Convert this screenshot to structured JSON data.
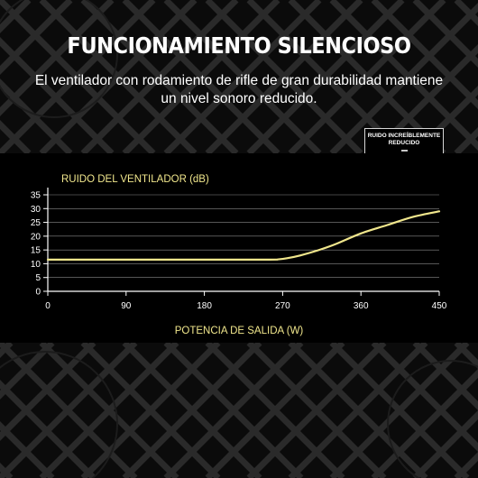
{
  "page": {
    "headline": "FUNCIONAMIENTO SILENCIOSO",
    "subtitle": "El ventilador con rodamiento de rifle de gran durabilidad mantiene un nivel sonoro reducido.",
    "badge_text": "RUIDO INCREÍBLEMENTE REDUCIDO"
  },
  "colors": {
    "background": "#000000",
    "accent": "#f0e68c",
    "text": "#ffffff",
    "grid": "#8a8a8a"
  },
  "chart_data": {
    "type": "line",
    "title": "RUIDO DEL VENTILADOR (dB)",
    "xlabel": "POTENCIA DE SALIDA (W)",
    "ylabel": "",
    "xlim": [
      0,
      450
    ],
    "ylim": [
      0,
      35
    ],
    "xticks": [
      0,
      90,
      180,
      270,
      360,
      450
    ],
    "yticks": [
      0,
      5,
      10,
      15,
      20,
      25,
      30,
      35
    ],
    "grid": true,
    "series": [
      {
        "x": [
          0,
          90,
          180,
          255,
          265,
          275,
          290,
          310,
          330,
          360,
          390,
          420,
          450
        ],
        "y": [
          11.5,
          11.5,
          11.5,
          11.5,
          11.6,
          12,
          13,
          14.8,
          17,
          21,
          24,
          27,
          29
        ]
      }
    ]
  }
}
